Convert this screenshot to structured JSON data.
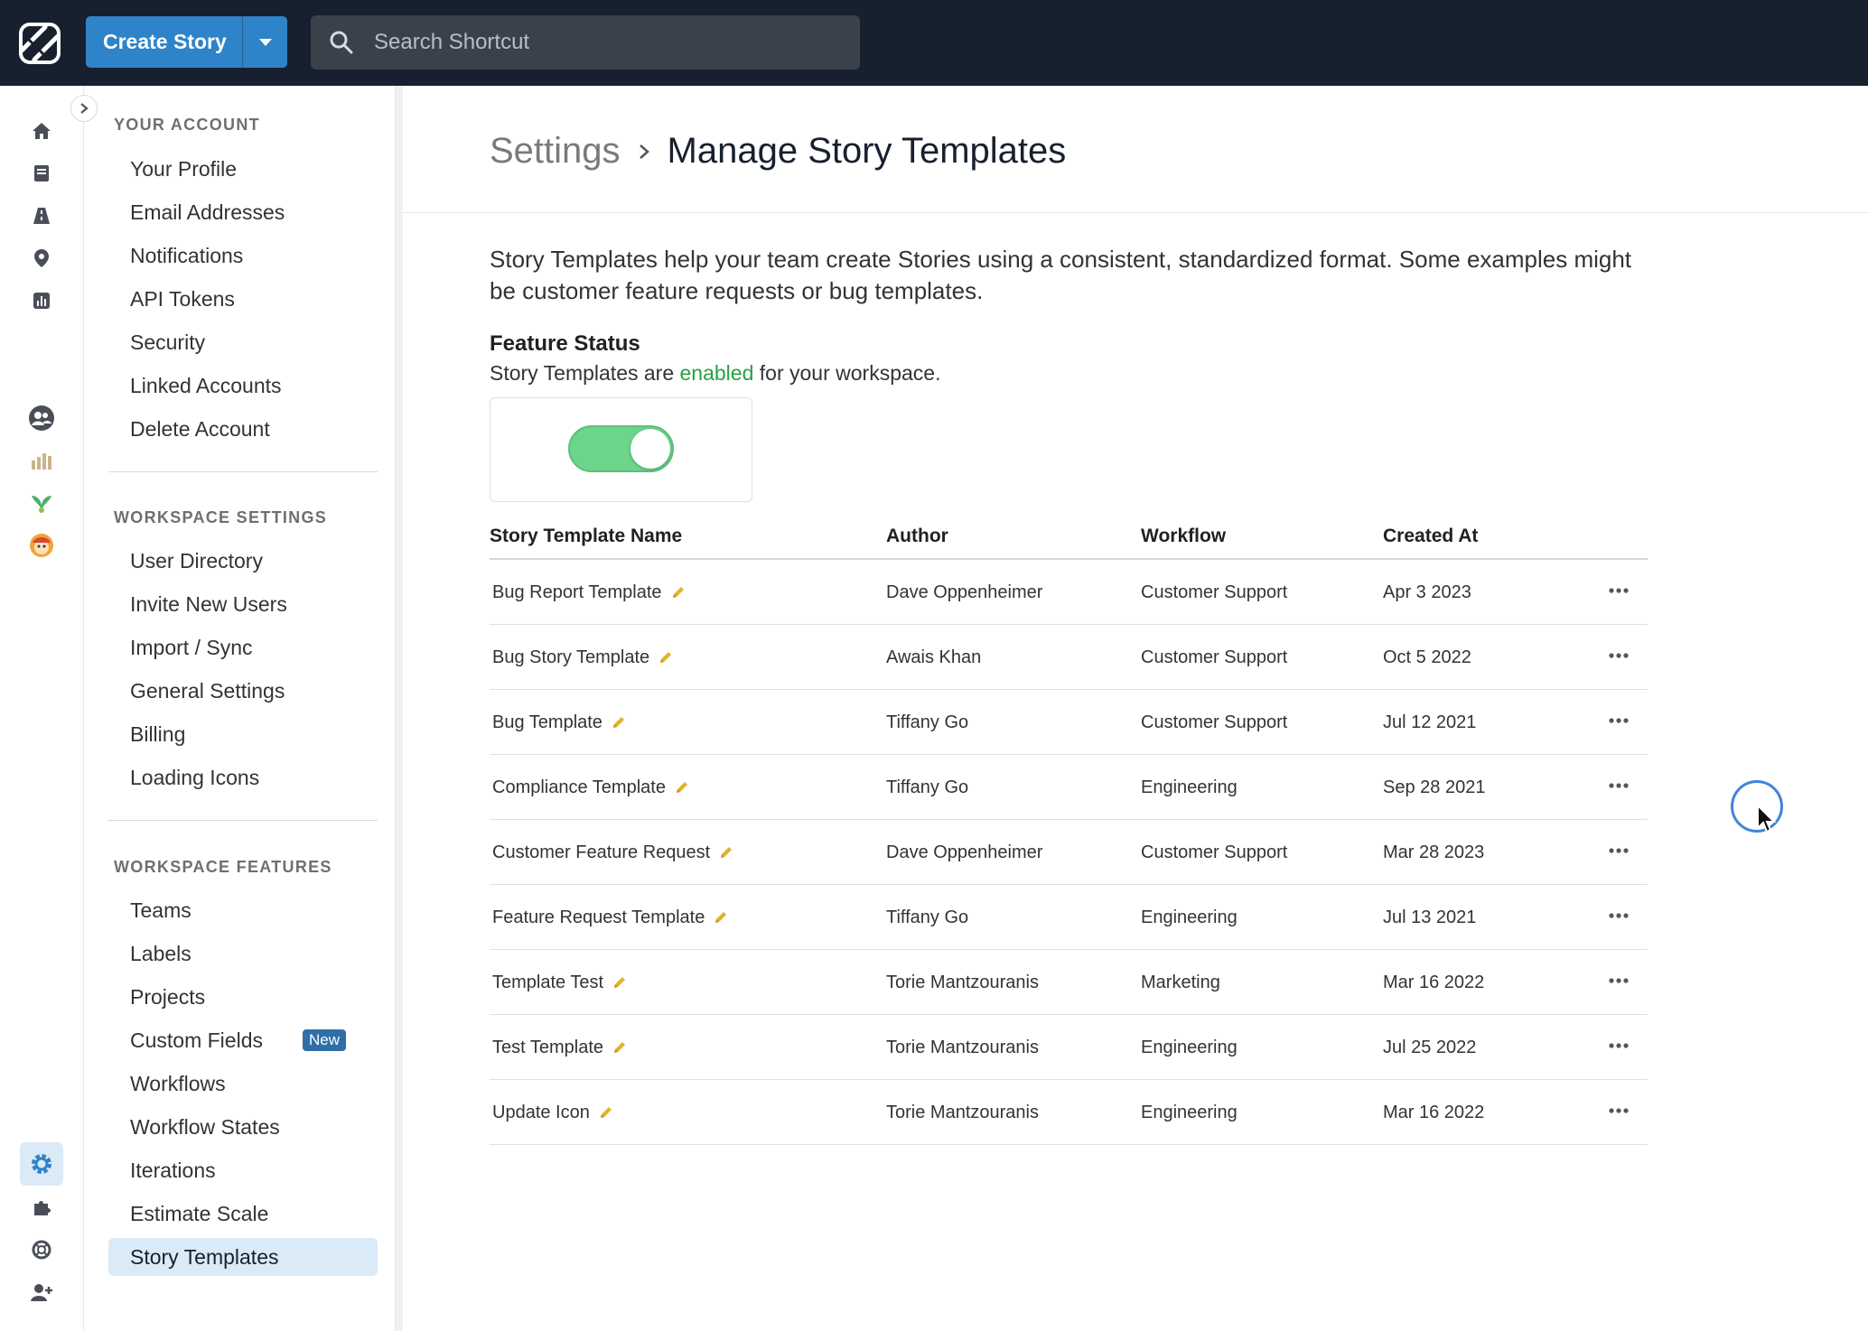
{
  "topbar": {
    "create_label": "Create Story",
    "search_placeholder": "Search Shortcut"
  },
  "rail": {
    "icons": [
      "home-icon",
      "book-icon",
      "road-icon",
      "location-pin-icon",
      "chart-icon",
      "team-icon",
      "team-avatar-2-icon",
      "team-avatar-3-icon",
      "team-avatar-4-icon",
      "gear-icon",
      "puzzle-icon",
      "help-icon",
      "add-user-icon"
    ]
  },
  "nav": {
    "your_account": {
      "heading": "YOUR ACCOUNT",
      "items": [
        "Your Profile",
        "Email Addresses",
        "Notifications",
        "API Tokens",
        "Security",
        "Linked Accounts",
        "Delete Account"
      ]
    },
    "workspace_settings": {
      "heading": "WORKSPACE SETTINGS",
      "items": [
        "User Directory",
        "Invite New Users",
        "Import / Sync",
        "General Settings",
        "Billing",
        "Loading Icons"
      ]
    },
    "workspace_features": {
      "heading": "WORKSPACE FEATURES",
      "items": [
        "Teams",
        "Labels",
        "Projects",
        "Custom Fields",
        "Workflows",
        "Workflow States",
        "Iterations",
        "Estimate Scale",
        "Story Templates"
      ],
      "new_badge": "New",
      "active": "Story Templates"
    }
  },
  "main": {
    "breadcrumb_parent": "Settings",
    "title": "Manage Story Templates",
    "intro": "Story Templates help your team create Stories using a consistent, standardized format. Some examples might be customer feature requests or bug templates.",
    "feature_status_title": "Feature Status",
    "feature_status_pre": "Story Templates are ",
    "feature_status_state": "enabled",
    "feature_status_post": " for your workspace.",
    "toggle_on": true
  },
  "table": {
    "columns": [
      "Story Template Name",
      "Author",
      "Workflow",
      "Created At"
    ],
    "rows": [
      {
        "name": "Bug Report Template",
        "author": "Dave Oppenheimer",
        "workflow": "Customer Support",
        "created": "Apr 3 2023"
      },
      {
        "name": "Bug Story Template",
        "author": "Awais Khan",
        "workflow": "Customer Support",
        "created": "Oct 5 2022"
      },
      {
        "name": "Bug Template",
        "author": "Tiffany Go",
        "workflow": "Customer Support",
        "created": "Jul 12 2021"
      },
      {
        "name": "Compliance Template",
        "author": "Tiffany Go",
        "workflow": "Engineering",
        "created": "Sep 28 2021"
      },
      {
        "name": "Customer Feature Request",
        "author": "Dave Oppenheimer",
        "workflow": "Customer Support",
        "created": "Mar 28 2023"
      },
      {
        "name": "Feature Request Template",
        "author": "Tiffany Go",
        "workflow": "Engineering",
        "created": "Jul 13 2021"
      },
      {
        "name": "Template Test",
        "author": "Torie Mantzouranis",
        "workflow": "Marketing",
        "created": "Mar 16 2022"
      },
      {
        "name": "Test Template",
        "author": "Torie Mantzouranis",
        "workflow": "Engineering",
        "created": "Jul 25 2022"
      },
      {
        "name": "Update Icon",
        "author": "Torie Mantzouranis",
        "workflow": "Engineering",
        "created": "Mar 16 2022"
      }
    ]
  },
  "colors": {
    "topbar": "#17202e",
    "accent": "#2f83c8",
    "enabled": "#25a244",
    "toggle": "#6dd48c",
    "active_nav": "#dbeaf7"
  }
}
